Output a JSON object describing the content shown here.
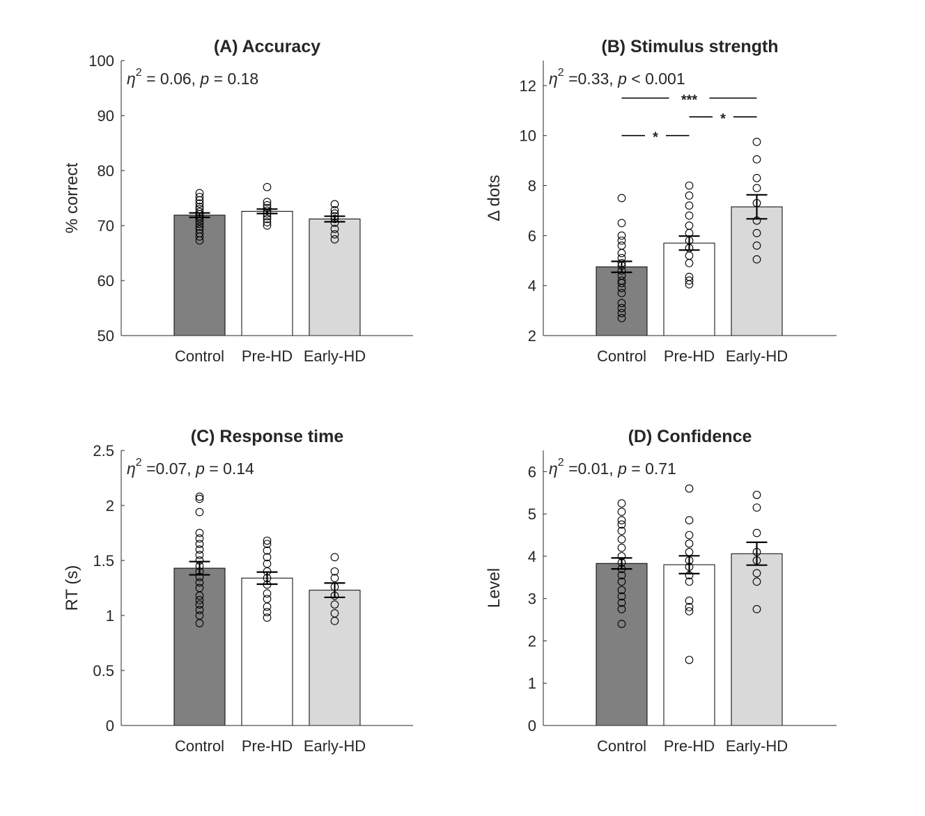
{
  "chart_data": [
    {
      "type": "bar",
      "title": "(A) Accuracy",
      "stat": {
        "eta_sup": "2",
        "eta_value": " = 0.06, ",
        "p_value": " = 0.18"
      },
      "ylabel": "% correct",
      "ylim": [
        50,
        100
      ],
      "yticks": [
        50,
        60,
        70,
        80,
        90,
        100
      ],
      "categories": [
        "Control",
        "Pre-HD",
        "Early-HD"
      ],
      "values": [
        71.9,
        72.6,
        71.2
      ],
      "sem": [
        0.4,
        0.4,
        0.5
      ],
      "points": [
        [
          67.3,
          68.0,
          68.6,
          69.3,
          69.8,
          70.3,
          70.8,
          71.3,
          71.7,
          72.1,
          72.5,
          73.0,
          73.4,
          74.0,
          74.6,
          75.2,
          75.9
        ],
        [
          70.0,
          70.6,
          71.2,
          71.7,
          72.2,
          72.7,
          73.2,
          73.7,
          74.3,
          77.0
        ],
        [
          67.5,
          68.4,
          69.4,
          70.5,
          71.2,
          71.7,
          72.2,
          72.8,
          73.9
        ]
      ],
      "stars": []
    },
    {
      "type": "bar",
      "title": "(B) Stimulus strength",
      "stat": {
        "eta_sup": "2",
        "eta_value": " =0.33, ",
        "p_value": " < 0.001"
      },
      "ylabel": "Δ dots",
      "ylim": [
        2,
        13
      ],
      "yticks": [
        2,
        4,
        6,
        8,
        10,
        12
      ],
      "categories": [
        "Control",
        "Pre-HD",
        "Early-HD"
      ],
      "values": [
        4.75,
        5.7,
        7.15
      ],
      "sem": [
        0.22,
        0.28,
        0.48
      ],
      "points": [
        [
          2.7,
          2.9,
          3.1,
          3.3,
          3.7,
          3.9,
          4.1,
          4.2,
          4.4,
          4.6,
          4.8,
          4.9,
          5.1,
          5.3,
          5.6,
          5.8,
          6.0,
          6.5,
          7.5
        ],
        [
          4.05,
          4.2,
          4.35,
          4.9,
          5.2,
          5.5,
          5.8,
          6.1,
          6.4,
          6.8,
          7.2,
          7.6,
          8.0
        ],
        [
          5.05,
          5.6,
          6.1,
          6.6,
          7.3,
          7.9,
          8.3,
          9.05,
          9.75
        ]
      ],
      "stars": [
        {
          "from": 0,
          "to": 1,
          "y": 10.0,
          "label": "*"
        },
        {
          "from": 1,
          "to": 2,
          "y": 10.75,
          "label": "*"
        },
        {
          "from": 0,
          "to": 2,
          "y": 11.5,
          "label": "***"
        }
      ]
    },
    {
      "type": "bar",
      "title": "(C) Response time",
      "stat": {
        "eta_sup": "2",
        "eta_value": " =0.07, ",
        "p_value": " = 0.14"
      },
      "ylabel": "RT (s)",
      "ylim": [
        0,
        2.5
      ],
      "yticks": [
        0,
        0.5,
        1,
        1.5,
        2,
        2.5
      ],
      "categories": [
        "Control",
        "Pre-HD",
        "Early-HD"
      ],
      "values": [
        1.43,
        1.34,
        1.23
      ],
      "sem": [
        0.06,
        0.055,
        0.065
      ],
      "points": [
        [
          0.93,
          1.0,
          1.05,
          1.1,
          1.14,
          1.18,
          1.25,
          1.3,
          1.35,
          1.4,
          1.45,
          1.5,
          1.55,
          1.6,
          1.65,
          1.7,
          1.75,
          1.94,
          2.06,
          2.08
        ],
        [
          0.98,
          1.03,
          1.08,
          1.15,
          1.2,
          1.28,
          1.34,
          1.4,
          1.47,
          1.53,
          1.59,
          1.65,
          1.68
        ],
        [
          0.95,
          1.02,
          1.1,
          1.18,
          1.26,
          1.34,
          1.4,
          1.53
        ]
      ],
      "stars": []
    },
    {
      "type": "bar",
      "title": "(D) Confidence",
      "stat": {
        "eta_sup": "2",
        "eta_value": " =0.01, ",
        "p_value": " = 0.71"
      },
      "ylabel": "Level",
      "ylim": [
        0,
        6.5
      ],
      "yticks": [
        0,
        1,
        2,
        3,
        4,
        5,
        6
      ],
      "categories": [
        "Control",
        "Pre-HD",
        "Early-HD"
      ],
      "values": [
        3.83,
        3.8,
        4.06
      ],
      "sem": [
        0.13,
        0.21,
        0.27
      ],
      "points": [
        [
          2.4,
          2.75,
          2.9,
          3.05,
          3.2,
          3.4,
          3.55,
          3.7,
          3.85,
          4.0,
          4.2,
          4.4,
          4.6,
          4.75,
          4.85,
          5.05,
          5.25
        ],
        [
          1.55,
          2.7,
          2.8,
          2.95,
          3.4,
          3.55,
          3.75,
          3.9,
          4.1,
          4.3,
          4.5,
          4.85,
          5.6
        ],
        [
          2.75,
          3.4,
          3.6,
          3.9,
          4.1,
          4.55,
          5.15,
          5.45
        ]
      ],
      "stars": []
    }
  ],
  "colors": {
    "bars": [
      "#808080",
      "#ffffff",
      "#d9d9d9"
    ],
    "edge": "#000000",
    "axis": "#262626"
  }
}
